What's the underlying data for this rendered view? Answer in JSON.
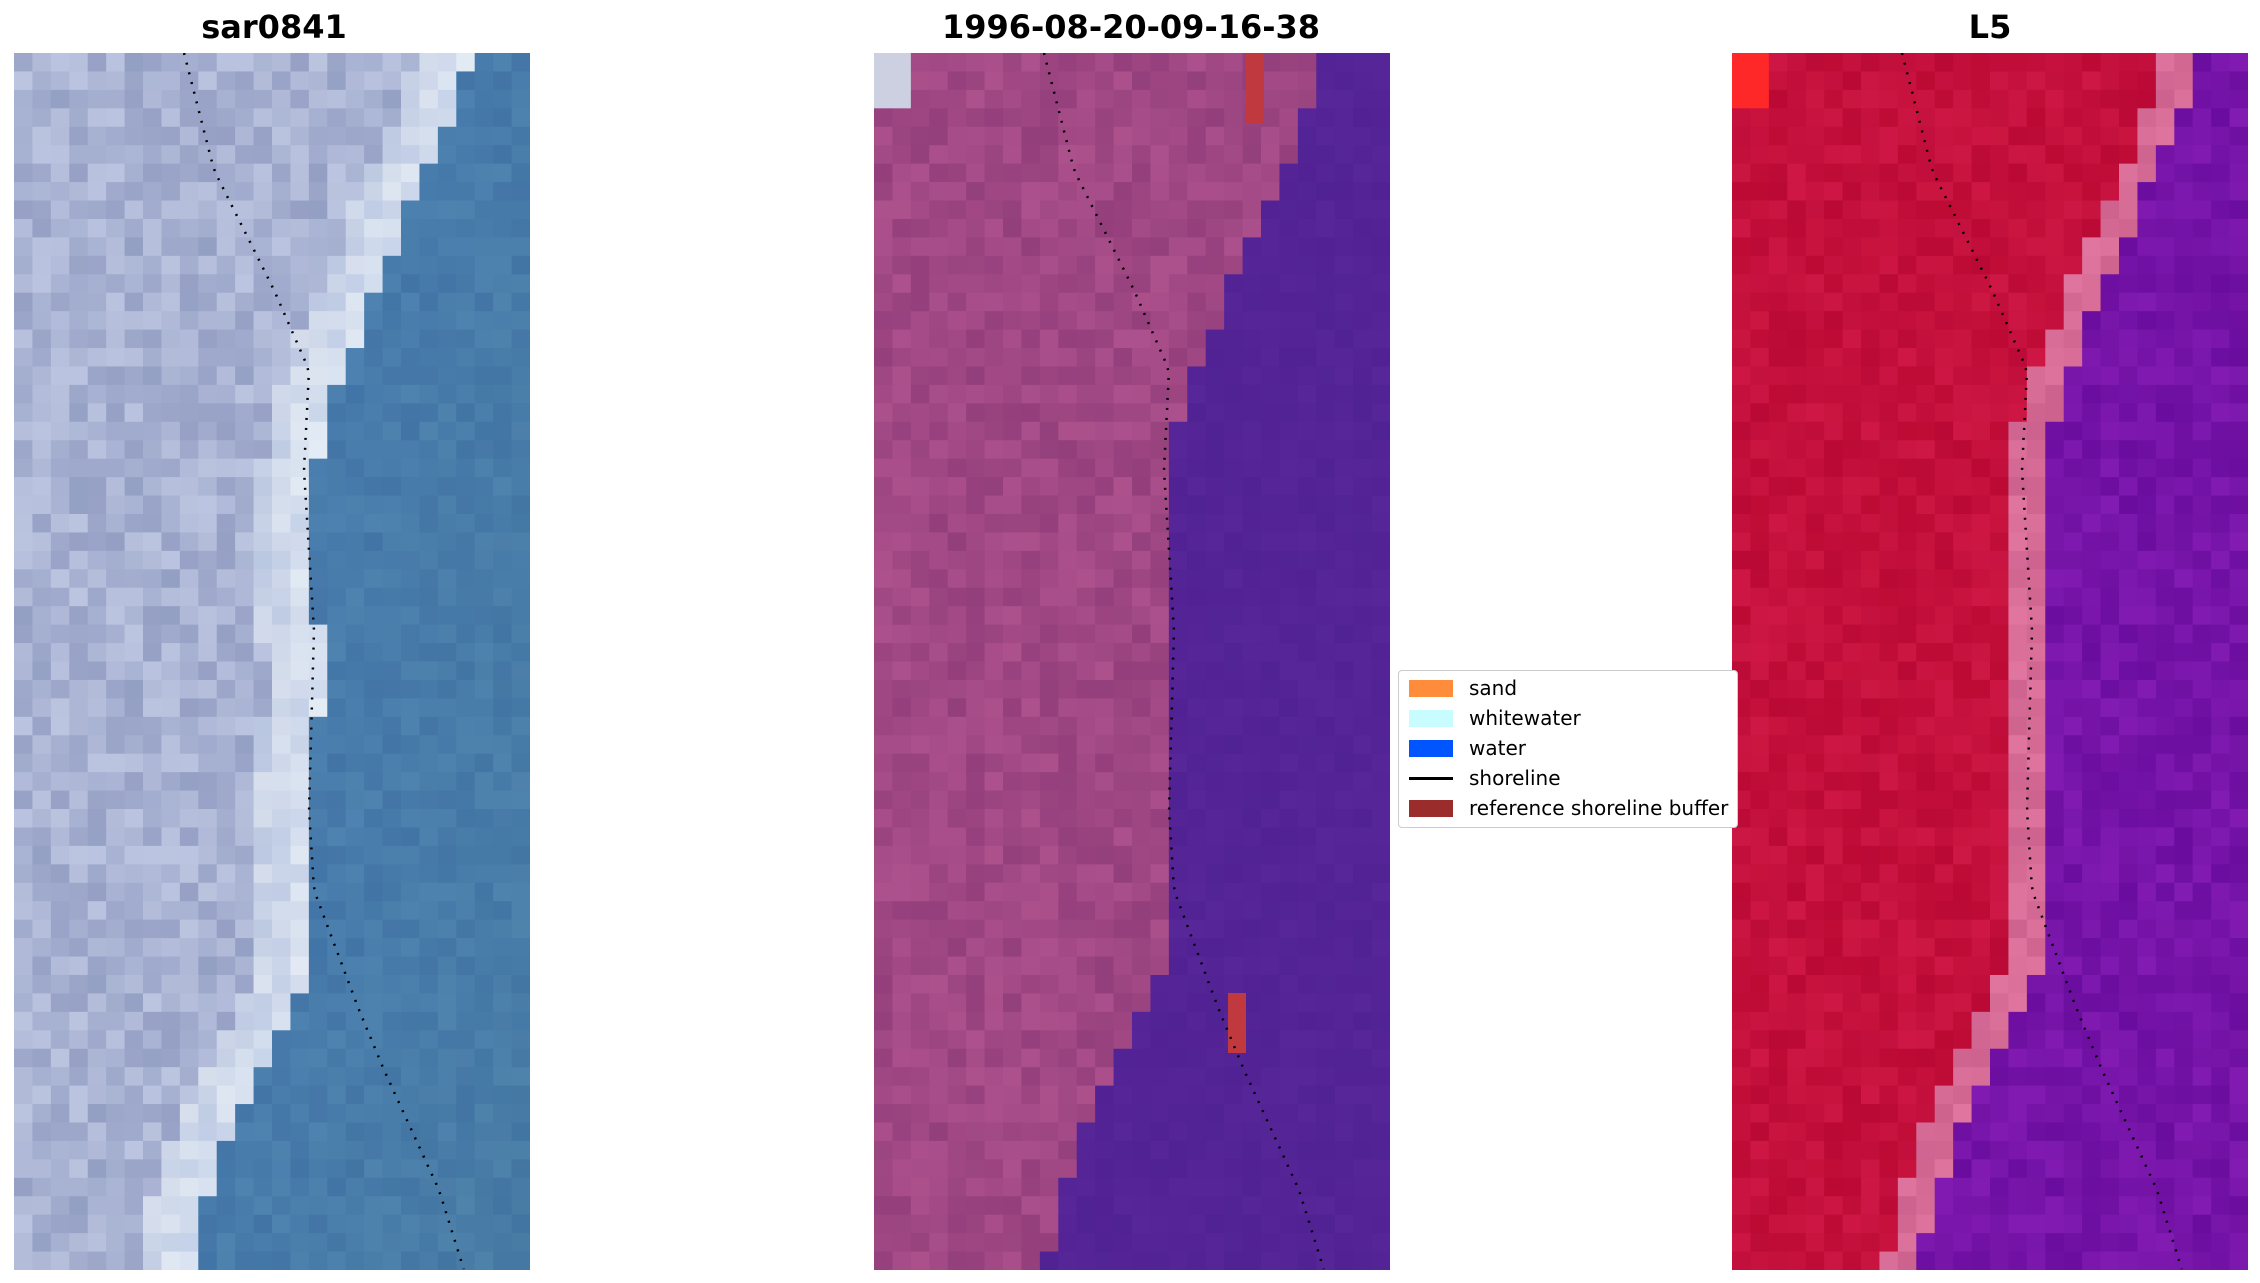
{
  "panels": [
    {
      "title": "sar0841",
      "style": "rgb"
    },
    {
      "title": "1996-08-20-09-16-38",
      "style": "classified"
    },
    {
      "title": "L5",
      "style": "index"
    }
  ],
  "legend": {
    "items": [
      {
        "label": "sand",
        "kind": "patch",
        "color": "#ff8c3a"
      },
      {
        "label": "whitewater",
        "kind": "patch",
        "color": "#c8fcff"
      },
      {
        "label": "water",
        "kind": "patch",
        "color": "#0055ff"
      },
      {
        "label": "shoreline",
        "kind": "line",
        "color": "#000000"
      },
      {
        "label": "reference shoreline buffer",
        "kind": "patch",
        "color": "#9a2c2c"
      }
    ]
  }
}
